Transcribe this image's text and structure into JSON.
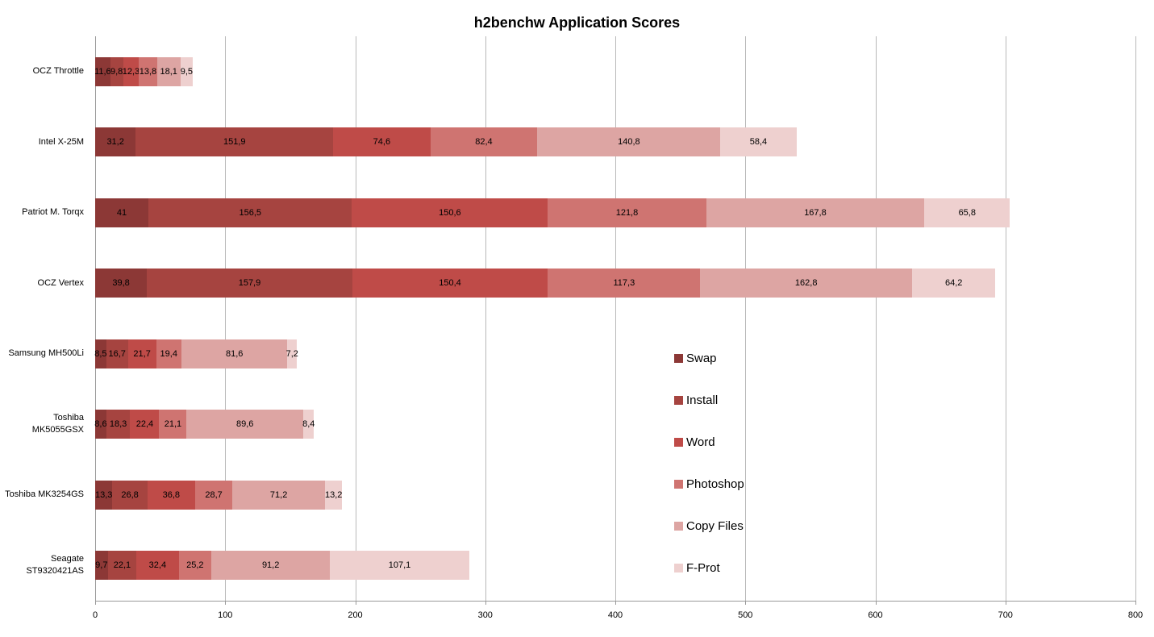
{
  "chart_data": {
    "type": "bar",
    "stacked": true,
    "orientation": "horizontal",
    "title": "h2benchw Application Scores",
    "xlabel": "",
    "ylabel": "",
    "xlim": [
      0,
      800
    ],
    "xticks": [
      0,
      100,
      200,
      300,
      400,
      500,
      600,
      700,
      800
    ],
    "grid": "vertical",
    "legend_position": "inside-right",
    "decimal_separator": ",",
    "categories": [
      "OCZ Throttle",
      "Intel X-25M",
      "Patriot M. Torqx",
      "OCZ Vertex",
      "Samsung MH500Li",
      "Toshiba MK5055GSX",
      "Toshiba MK3254GS",
      "Seagate ST9320421AS"
    ],
    "series": [
      {
        "name": "Swap",
        "color": "#8c3836",
        "values": [
          11.6,
          31.2,
          41,
          39.8,
          8.5,
          8.6,
          13.3,
          9.7
        ]
      },
      {
        "name": "Install",
        "color": "#a64440",
        "values": [
          9.8,
          151.9,
          156.5,
          157.9,
          16.7,
          18.3,
          26.8,
          22.1
        ]
      },
      {
        "name": "Word",
        "color": "#bf4b48",
        "values": [
          12.3,
          74.6,
          150.6,
          150.4,
          21.7,
          22.4,
          36.8,
          32.4
        ]
      },
      {
        "name": "Photoshop",
        "color": "#cf7471",
        "values": [
          13.8,
          82.4,
          121.8,
          117.3,
          19.4,
          21.1,
          28.7,
          25.2
        ]
      },
      {
        "name": "Copy Files",
        "color": "#dda5a3",
        "values": [
          18.1,
          140.8,
          167.8,
          162.8,
          81.6,
          89.6,
          71.2,
          91.2
        ]
      },
      {
        "name": "F-Prot",
        "color": "#eed0cf",
        "values": [
          9.5,
          58.4,
          65.8,
          64.2,
          7.2,
          8.4,
          13.2,
          107.1
        ]
      }
    ]
  }
}
